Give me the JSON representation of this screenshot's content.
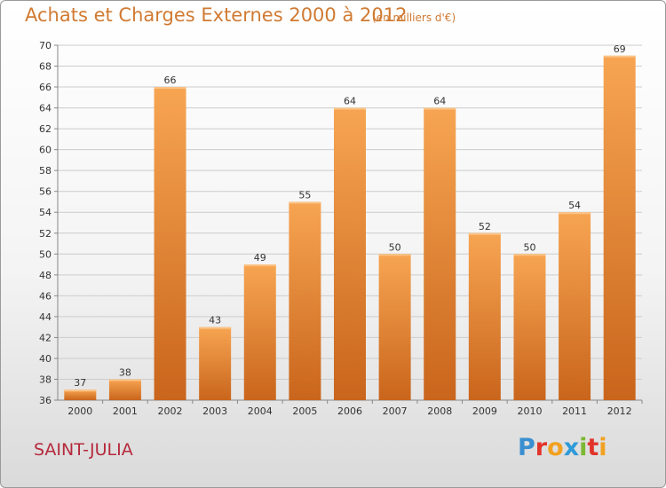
{
  "header": {
    "title": "Achats et Charges Externes 2000 à 2012",
    "subtitle": "(en milliers d'€)"
  },
  "footer": {
    "commune": "SAINT-JULIA",
    "brand": "Proxiti",
    "brand_colors": [
      "#3a8fd0",
      "#e2342b",
      "#f2a120",
      "#2e9ad8",
      "#7cb832",
      "#e2342b",
      "#f2a120"
    ]
  },
  "colors": {
    "title": "#d07a32",
    "commune": "#b5293c",
    "bar_top": "#f7a552",
    "bar_bottom": "#c9651c",
    "grid": "#cccccc"
  },
  "chart_data": {
    "type": "bar",
    "title": "Achats et Charges Externes 2000 à 2012",
    "subtitle": "(en milliers d'€)",
    "categories": [
      "2000",
      "2001",
      "2002",
      "2003",
      "2004",
      "2005",
      "2006",
      "2007",
      "2008",
      "2009",
      "2010",
      "2011",
      "2012"
    ],
    "values": [
      37,
      38,
      66,
      43,
      49,
      55,
      64,
      50,
      64,
      52,
      50,
      54,
      69
    ],
    "ylim": [
      36,
      70
    ],
    "yticks": [
      36,
      38,
      40,
      42,
      44,
      46,
      48,
      50,
      52,
      54,
      56,
      58,
      60,
      62,
      64,
      66,
      68,
      70
    ],
    "xlabel": "",
    "ylabel": "",
    "grid": true,
    "data_labels": true
  }
}
